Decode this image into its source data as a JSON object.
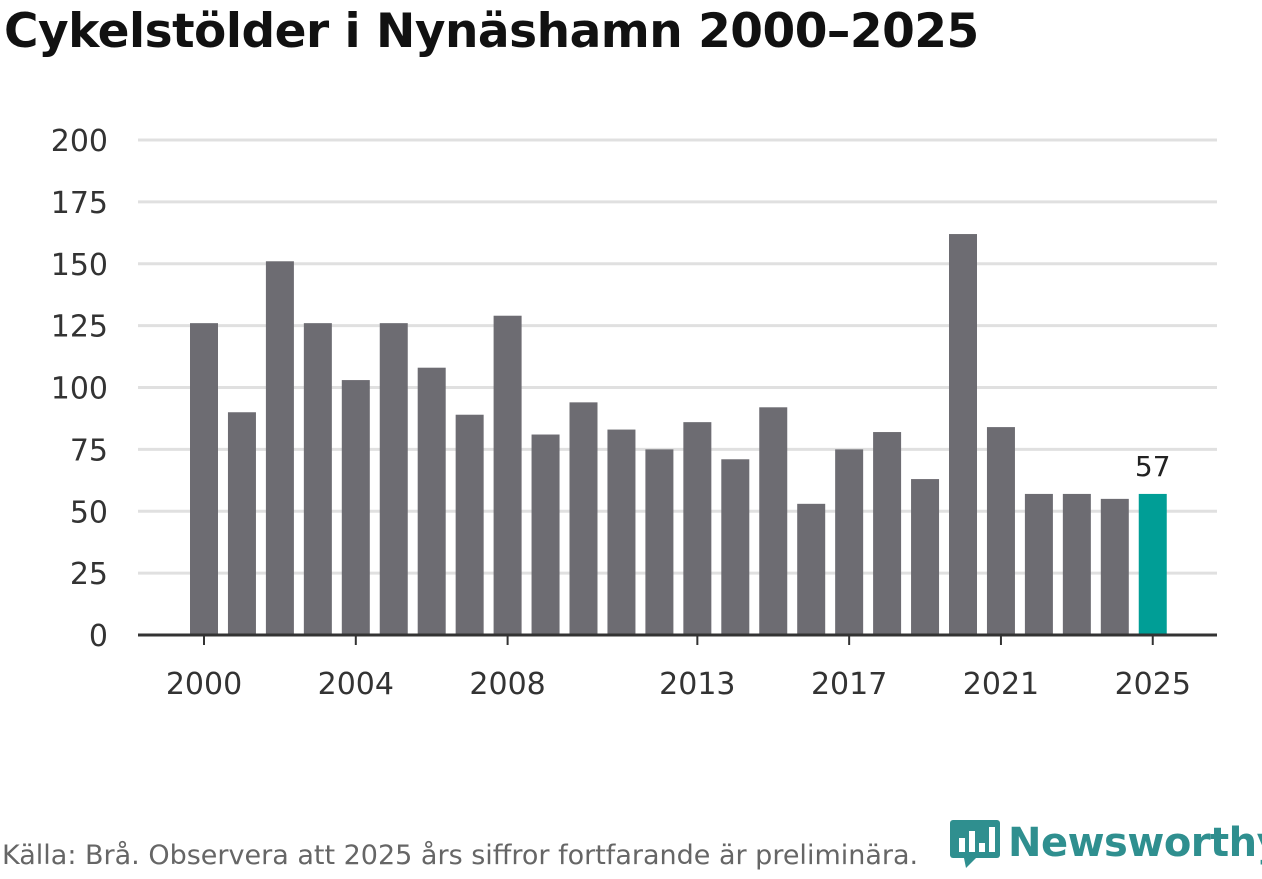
{
  "title": "Cykelstölder i Nynäshamn 2000–2025",
  "source": "Källa: Brå. Observera att 2025 års siffror fortfarande är preliminära.",
  "brand": {
    "name": "Newsworthy",
    "icon": "bar-chart-icon"
  },
  "colors": {
    "bar": "#6d6c72",
    "highlight": "#009e96",
    "grid": "#e0e0e0",
    "axis": "#333333",
    "brand": "#2f8f8f"
  },
  "chart_data": {
    "type": "bar",
    "title": "Cykelstölder i Nynäshamn 2000–2025",
    "xlabel": "",
    "ylabel": "",
    "ylim": [
      0,
      200
    ],
    "yticks": [
      0,
      25,
      50,
      75,
      100,
      125,
      150,
      175,
      200
    ],
    "categories": [
      "2000",
      "2001",
      "2002",
      "2003",
      "2004",
      "2005",
      "2006",
      "2007",
      "2008",
      "2009",
      "2010",
      "2011",
      "2012",
      "2013",
      "2014",
      "2015",
      "2016",
      "2017",
      "2018",
      "2019",
      "2020",
      "2021",
      "2022",
      "2023",
      "2024",
      "2025"
    ],
    "values": [
      126,
      90,
      151,
      126,
      103,
      126,
      108,
      89,
      129,
      81,
      94,
      83,
      75,
      86,
      71,
      92,
      53,
      75,
      82,
      63,
      162,
      84,
      57,
      57,
      55,
      57
    ],
    "xtick_labels": [
      "2000",
      "2004",
      "2008",
      "2013",
      "2017",
      "2021",
      "2025"
    ],
    "highlight": {
      "category": "2025",
      "label": "57"
    },
    "grid": true
  }
}
